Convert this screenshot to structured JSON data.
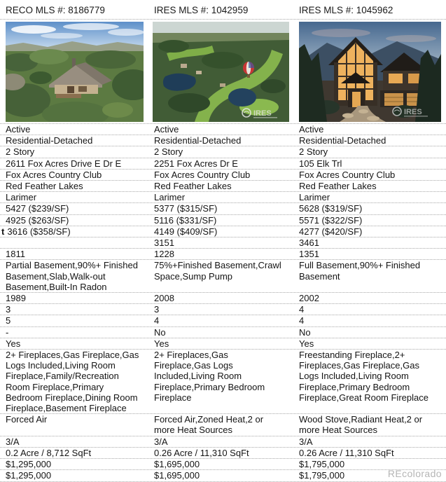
{
  "page": {
    "brand_watermark": "REcolorado",
    "colors": {
      "divider": "#a8a8a8",
      "watermark_gray": "#b5b5b5",
      "text": "#141414"
    }
  },
  "header": {
    "cols": [
      "RECO MLS #: 8186779",
      "IRES MLS #: 1042959",
      "IRES MLS #: 1045962"
    ]
  },
  "photos": [
    {
      "name": "aerial view of home surrounded by pine forest and mountains",
      "watermark": ""
    },
    {
      "name": "aerial view of golf course community with ponds and balloon marker",
      "watermark": "IRES"
    },
    {
      "name": "twilight exterior of luxury mountain home with glowing windows",
      "watermark": "IRES"
    }
  ],
  "rows": [
    {
      "name": "status",
      "cells": [
        "Active",
        "Active",
        "Active"
      ]
    },
    {
      "name": "property-type",
      "cells": [
        "Residential-Detached",
        "Residential-Detached",
        "Residential-Detached"
      ]
    },
    {
      "name": "style",
      "cells": [
        "2 Story",
        "2 Story",
        "2 Story"
      ]
    },
    {
      "name": "address",
      "cells": [
        "2611 Fox Acres Drive E Dr E",
        "2251 Fox Acres Dr E",
        "105 Elk Trl"
      ]
    },
    {
      "name": "subdivision",
      "cells": [
        "Fox Acres Country Club",
        "Fox Acres Country Club",
        "Fox Acres Country Club"
      ]
    },
    {
      "name": "city",
      "cells": [
        "Red Feather Lakes",
        "Red Feather Lakes",
        "Red Feather Lakes"
      ]
    },
    {
      "name": "county",
      "cells": [
        "Larimer",
        "Larimer",
        "Larimer"
      ]
    },
    {
      "name": "total-sqft",
      "cells": [
        "5427 ($239/SF)",
        "5377 ($315/SF)",
        "5628 ($319/SF)"
      ]
    },
    {
      "name": "finished-sqft",
      "cells": [
        "4925 ($263/SF)",
        "5116 ($331/SF)",
        "5571 ($322/SF)"
      ]
    },
    {
      "name": "above-grade-sqft",
      "prefix": "t",
      "cells": [
        "3616 ($358/SF)",
        "4149 ($409/SF)",
        "4277 ($420/SF)"
      ]
    },
    {
      "name": "upper-sqft",
      "cells": [
        "",
        "3151",
        "3461"
      ]
    },
    {
      "name": "main-sqft",
      "cells": [
        "1811",
        "1228",
        "1351"
      ]
    },
    {
      "name": "basement",
      "cells": [
        "Partial Basement,90%+ Finished Basement,Slab,Walk-out Basement,Built-In Radon",
        "75%+Finished Basement,Crawl Space,Sump Pump",
        "Full Basement,90%+ Finished Basement"
      ]
    },
    {
      "name": "year-built",
      "cells": [
        "1989",
        "2008",
        "2002"
      ]
    },
    {
      "name": "beds",
      "cells": [
        "3",
        "3",
        "4"
      ]
    },
    {
      "name": "baths",
      "cells": [
        "5",
        "4",
        "4"
      ]
    },
    {
      "name": "flag-row-1",
      "cells": [
        "-",
        "No",
        "No"
      ]
    },
    {
      "name": "flag-row-2",
      "cells": [
        "Yes",
        "Yes",
        "Yes"
      ]
    },
    {
      "name": "fireplaces",
      "cells": [
        "2+ Fireplaces,Gas Fireplace,Gas Logs Included,Living Room Fireplace,Family/Recreation Room Fireplace,Primary Bedroom Fireplace,Dining Room Fireplace,Basement Fireplace",
        "2+ Fireplaces,Gas Fireplace,Gas Logs Included,Living Room Fireplace,Primary Bedroom Fireplace",
        "Freestanding Fireplace,2+ Fireplaces,Gas Fireplace,Gas Logs Included,Living Room Fireplace,Primary Bedroom Fireplace,Great Room Fireplace"
      ]
    },
    {
      "name": "heating",
      "cells": [
        "Forced Air",
        "Forced Air,Zoned Heat,2 or more Heat Sources",
        "Wood Stove,Radiant Heat,2 or more Heat Sources"
      ]
    },
    {
      "name": "ratio-row",
      "cells": [
        "3/A",
        "3/A",
        "3/A"
      ]
    },
    {
      "name": "lot-size",
      "cells": [
        "0.2 Acre / 8,712 SqFt",
        "0.26 Acre / 11,310 SqFt",
        "0.26 Acre / 11,310 SqFt"
      ]
    },
    {
      "name": "list-price",
      "cells": [
        "$1,295,000",
        "$1,695,000",
        "$1,795,000"
      ]
    },
    {
      "name": "price",
      "cells": [
        "$1,295,000",
        "$1,695,000",
        "$1,795,000"
      ]
    }
  ]
}
